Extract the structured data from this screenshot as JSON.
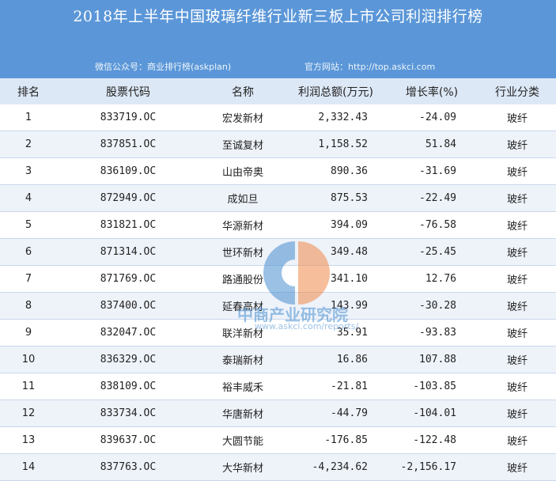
{
  "header": {
    "title": "2018年上半年中国玻璃纤维行业新三板上市公司利润排行榜",
    "wechat": "微信公众号：商业排行榜(askplan)",
    "website": "官方网站：http://top.askci.com"
  },
  "table": {
    "columns": [
      "排名",
      "股票代码",
      "名称",
      "利润总额(万元)",
      "增长率(%)",
      "行业分类"
    ],
    "rows": [
      [
        "1",
        "833719.OC",
        "宏发新材",
        "2,332.43",
        "-24.09",
        "玻纤"
      ],
      [
        "2",
        "837851.OC",
        "至诚复材",
        "1,158.52",
        "51.84",
        "玻纤"
      ],
      [
        "3",
        "836109.OC",
        "山由帝奥",
        "890.36",
        "-31.69",
        "玻纤"
      ],
      [
        "4",
        "872949.OC",
        "成如旦",
        "875.53",
        "-22.49",
        "玻纤"
      ],
      [
        "5",
        "831821.OC",
        "华源新材",
        "394.09",
        "-76.58",
        "玻纤"
      ],
      [
        "6",
        "871314.OC",
        "世环新材",
        "349.48",
        "-25.45",
        "玻纤"
      ],
      [
        "7",
        "871769.OC",
        "路通股份",
        "341.10",
        "12.76",
        "玻纤"
      ],
      [
        "8",
        "837400.OC",
        "延春高材",
        "143.99",
        "-30.28",
        "玻纤"
      ],
      [
        "9",
        "832047.OC",
        "联洋新材",
        "35.91",
        "-93.83",
        "玻纤"
      ],
      [
        "10",
        "836329.OC",
        "泰瑞新材",
        "16.86",
        "107.88",
        "玻纤"
      ],
      [
        "11",
        "838109.OC",
        "裕丰威禾",
        "-21.81",
        "-103.85",
        "玻纤"
      ],
      [
        "12",
        "833734.OC",
        "华唐新材",
        "-44.79",
        "-104.01",
        "玻纤"
      ],
      [
        "13",
        "839637.OC",
        "大圆节能",
        "-176.85",
        "-122.48",
        "玻纤"
      ],
      [
        "14",
        "837763.OC",
        "大华新材",
        "-4,234.62",
        "-2,156.17",
        "玻纤"
      ]
    ]
  },
  "watermark": {
    "brand": "中商产业研究院",
    "url": "www.askci.com/reports/"
  },
  "colors": {
    "banner": "#5b97d8",
    "header_row": "#dde8f6",
    "alt_row": "#eef3fa"
  }
}
